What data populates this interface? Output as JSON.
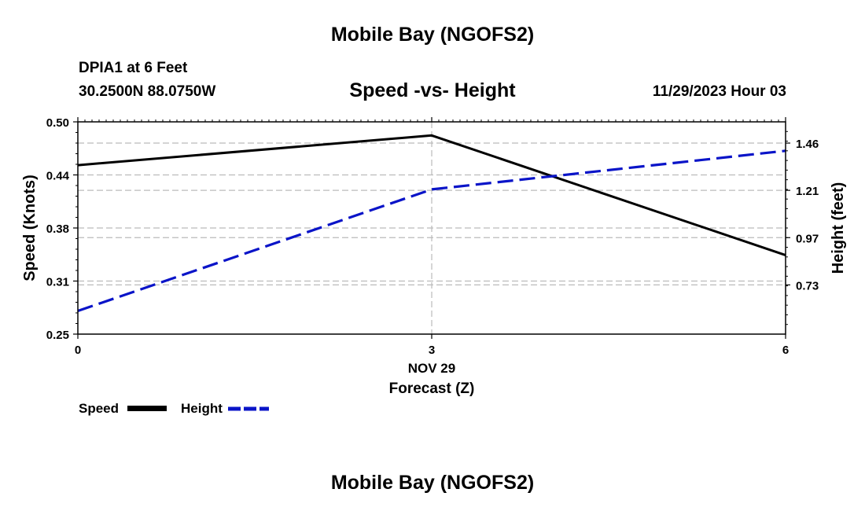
{
  "page": {
    "title_top": "Mobile Bay (NGOFS2)",
    "title_bottom": "Mobile Bay (NGOFS2)",
    "station": "DPIA1 at 6 Feet",
    "coords": "30.2500N  88.0750W",
    "datetime": "11/29/2023 Hour 03"
  },
  "colors": {
    "speed": "#000000",
    "height": "#0a14c8",
    "grid": "#bbbbbb"
  },
  "legend": {
    "speed_label": "Speed",
    "height_label": "Height"
  },
  "chart_data": {
    "type": "line",
    "title": "Speed -vs- Height",
    "xlabel": "Forecast (Z)",
    "x_date_label": "NOV 29",
    "x": [
      0,
      3,
      6
    ],
    "x_ticks": [
      "0",
      "3",
      "6"
    ],
    "xlim": [
      0,
      6
    ],
    "y_left": {
      "label": "Speed (Knots)",
      "lim": [
        0.25,
        0.5
      ],
      "ticks": [
        "0.50",
        "0.44",
        "0.38",
        "0.31",
        "0.25"
      ],
      "tick_values": [
        0.5,
        0.4375,
        0.375,
        0.3125,
        0.25
      ]
    },
    "y_right": {
      "label": "Height (feet)",
      "lim": [
        0.47,
        1.57
      ],
      "ticks": [
        "1.46",
        "1.21",
        "0.97",
        "0.73"
      ],
      "tick_values": [
        1.46,
        1.215,
        0.97,
        0.725
      ]
    },
    "series": [
      {
        "name": "Speed",
        "axis": "left",
        "style": "solid",
        "values": [
          0.449,
          0.484,
          0.343
        ]
      },
      {
        "name": "Height",
        "axis": "right",
        "style": "dashed",
        "values": [
          0.59,
          1.22,
          1.42
        ]
      }
    ],
    "grid": true
  }
}
